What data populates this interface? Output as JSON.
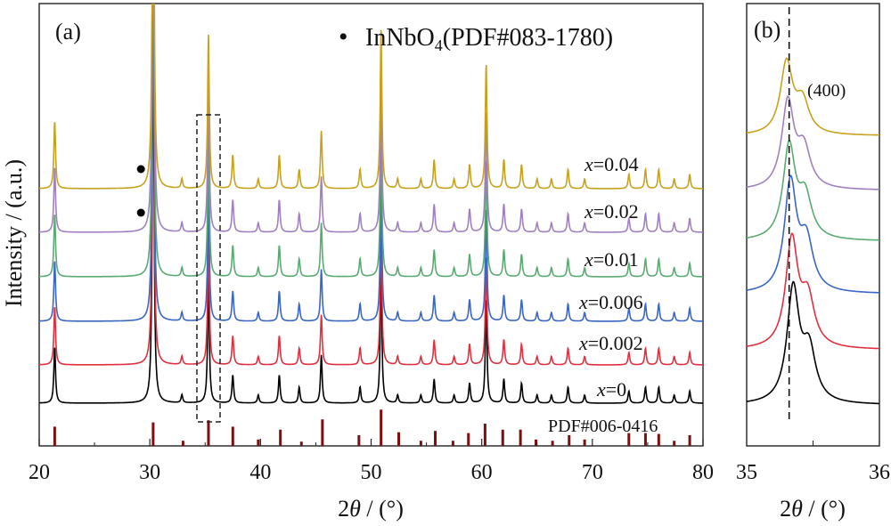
{
  "chart_data": [
    {
      "panel": "(a)",
      "type": "line",
      "xlabel_prefix": "2",
      "xlabel_symbol": "θ",
      "xlabel_suffix": " / (°)",
      "ylabel": "Intensity / (a.u.)",
      "xlim": [
        20,
        80
      ],
      "xticks": [
        20,
        30,
        40,
        50,
        60,
        70,
        80
      ],
      "legend": {
        "marker": "•",
        "label_main": "InNbO",
        "label_sub": "4",
        "label_rest": "(PDF#083-1780)",
        "placement": "top-right"
      },
      "reference_label": "PDF#006-0416",
      "peaks": [
        {
          "x": 21.4,
          "h": 0.14
        },
        {
          "x": 30.3,
          "h": 1.0
        },
        {
          "x": 32.9,
          "h": 0.02
        },
        {
          "x": 35.3,
          "h": 0.32
        },
        {
          "x": 37.5,
          "h": 0.07
        },
        {
          "x": 39.8,
          "h": 0.02
        },
        {
          "x": 41.7,
          "h": 0.07
        },
        {
          "x": 43.5,
          "h": 0.04
        },
        {
          "x": 45.5,
          "h": 0.12
        },
        {
          "x": 49.0,
          "h": 0.04
        },
        {
          "x": 50.9,
          "h": 0.33
        },
        {
          "x": 52.4,
          "h": 0.02
        },
        {
          "x": 54.5,
          "h": 0.02
        },
        {
          "x": 55.7,
          "h": 0.06
        },
        {
          "x": 57.5,
          "h": 0.02
        },
        {
          "x": 58.9,
          "h": 0.05
        },
        {
          "x": 60.4,
          "h": 0.26
        },
        {
          "x": 62.0,
          "h": 0.06
        },
        {
          "x": 63.6,
          "h": 0.05
        },
        {
          "x": 65.0,
          "h": 0.02
        },
        {
          "x": 66.3,
          "h": 0.02
        },
        {
          "x": 67.8,
          "h": 0.04
        },
        {
          "x": 69.3,
          "h": 0.02
        },
        {
          "x": 73.3,
          "h": 0.03
        },
        {
          "x": 74.8,
          "h": 0.04
        },
        {
          "x": 76.0,
          "h": 0.04
        },
        {
          "x": 77.4,
          "h": 0.02
        },
        {
          "x": 78.8,
          "h": 0.03
        }
      ],
      "series": [
        {
          "name": "x=0",
          "label_var": "x",
          "label_val": "=0",
          "color": "#000000",
          "marker_at": null
        },
        {
          "name": "x=0.002",
          "label_var": "x",
          "label_val": "=0.002",
          "color": "#e03040",
          "marker_at": null
        },
        {
          "name": "x=0.006",
          "label_var": "x",
          "label_val": "=0.006",
          "color": "#3a66c4",
          "marker_at": null
        },
        {
          "name": "x=0.01",
          "label_var": "x",
          "label_val": "=0.01",
          "color": "#5aaa72",
          "marker_at": null
        },
        {
          "name": "x=0.02",
          "label_var": "x",
          "label_val": "=0.02",
          "color": "#a080c0",
          "marker_at": 29.2
        },
        {
          "name": "x=0.04",
          "label_var": "x",
          "label_val": "=0.04",
          "color": "#c8a21e",
          "marker_at": 29.2
        }
      ],
      "reference_sticks": [
        {
          "x": 21.4,
          "h": 0.45
        },
        {
          "x": 30.3,
          "h": 0.55
        },
        {
          "x": 33.0,
          "h": 0.12
        },
        {
          "x": 35.3,
          "h": 0.6
        },
        {
          "x": 37.5,
          "h": 0.45
        },
        {
          "x": 39.8,
          "h": 0.15
        },
        {
          "x": 41.8,
          "h": 0.38
        },
        {
          "x": 43.7,
          "h": 0.1
        },
        {
          "x": 45.6,
          "h": 0.62
        },
        {
          "x": 48.9,
          "h": 0.25
        },
        {
          "x": 50.9,
          "h": 0.85
        },
        {
          "x": 52.5,
          "h": 0.32
        },
        {
          "x": 54.5,
          "h": 0.12
        },
        {
          "x": 55.8,
          "h": 0.35
        },
        {
          "x": 57.4,
          "h": 0.12
        },
        {
          "x": 58.8,
          "h": 0.3
        },
        {
          "x": 60.3,
          "h": 0.52
        },
        {
          "x": 61.9,
          "h": 0.38
        },
        {
          "x": 63.5,
          "h": 0.38
        },
        {
          "x": 64.9,
          "h": 0.15
        },
        {
          "x": 66.4,
          "h": 0.12
        },
        {
          "x": 67.9,
          "h": 0.25
        },
        {
          "x": 69.3,
          "h": 0.15
        },
        {
          "x": 73.3,
          "h": 0.3
        },
        {
          "x": 74.8,
          "h": 0.3
        },
        {
          "x": 76.0,
          "h": 0.28
        },
        {
          "x": 77.4,
          "h": 0.12
        },
        {
          "x": 78.8,
          "h": 0.25
        }
      ]
    },
    {
      "panel": "(b)",
      "type": "line",
      "xlim": [
        35,
        36
      ],
      "xticks": [
        35,
        36
      ],
      "xlabel_prefix": "2",
      "xlabel_symbol": "θ",
      "xlabel_suffix": " / (°)",
      "annotation": "(400)",
      "reference_line_x": 35.32,
      "series": [
        {
          "name": "x=0",
          "color": "#000000",
          "peak": 35.35
        },
        {
          "name": "x=0.002",
          "color": "#e03040",
          "peak": 35.34
        },
        {
          "name": "x=0.006",
          "color": "#3a66c4",
          "peak": 35.33
        },
        {
          "name": "x=0.01",
          "color": "#5aaa72",
          "peak": 35.32
        },
        {
          "name": "x=0.02",
          "color": "#a080c0",
          "peak": 35.31
        },
        {
          "name": "x=0.04",
          "color": "#c8a21e",
          "peak": 35.3
        }
      ]
    }
  ]
}
